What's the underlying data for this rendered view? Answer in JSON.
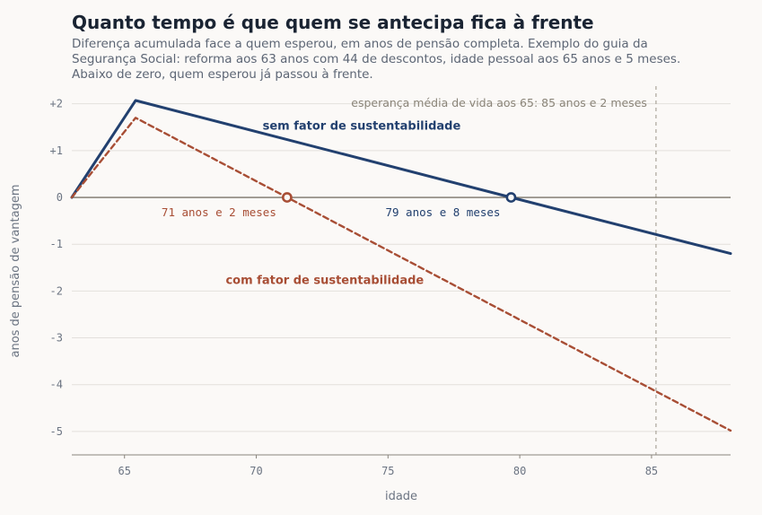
{
  "title": "Quanto tempo é que quem se antecipa fica à frente",
  "subtitle_lines": [
    "Diferença acumulada face a quem esperou, em anos de pensão completa. Exemplo do guia da",
    "Segurança Social: reforma aos 63 anos com 44 de descontos, idade pessoal aos 65 anos e 5 meses.",
    "Abaixo de zero, quem esperou já passou à frente."
  ],
  "chart_data": {
    "type": "line",
    "xlabel": "idade",
    "ylabel": "anos de pensão de vantagem",
    "xlim": [
      63,
      88
    ],
    "ylim": [
      -5.5,
      2.3
    ],
    "x_ticks": [
      65,
      70,
      75,
      80,
      85
    ],
    "y_ticks": [
      {
        "value": 2,
        "label": "+2"
      },
      {
        "value": 1,
        "label": "+1"
      },
      {
        "value": 0,
        "label": "0"
      },
      {
        "value": -1,
        "label": "-1"
      },
      {
        "value": -2,
        "label": "-2"
      },
      {
        "value": -3,
        "label": "-3"
      },
      {
        "value": -4,
        "label": "-4"
      },
      {
        "value": -5,
        "label": "-5"
      }
    ],
    "grid": "horizontal",
    "series": [
      {
        "name": "sem fator de sustentabilidade",
        "color": "#22406f",
        "style": "solid",
        "points": [
          [
            63,
            0
          ],
          [
            65.42,
            2.07
          ],
          [
            79.67,
            0
          ],
          [
            88,
            -1.2
          ]
        ],
        "crossing": {
          "x": 79.67,
          "y": 0,
          "label": "79 anos e 8 meses"
        },
        "label_at": [
          74,
          1.45
        ]
      },
      {
        "name": "com fator de sustentabilidade",
        "color": "#a84e35",
        "style": "dashed",
        "points": [
          [
            63,
            0
          ],
          [
            65.42,
            1.7
          ],
          [
            71.17,
            0
          ],
          [
            88,
            -4.98
          ]
        ],
        "crossing": {
          "x": 71.17,
          "y": 0,
          "label": "71 anos e 2 meses"
        },
        "label_at": [
          72.6,
          -1.85
        ]
      }
    ],
    "reference_line": {
      "x": 85.17,
      "label": "esperança média de vida aos 65: 85 anos e 2 meses",
      "color": "#aaa49a"
    }
  }
}
